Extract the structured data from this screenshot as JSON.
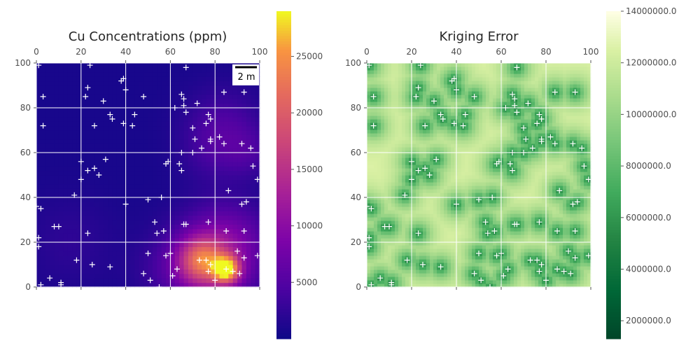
{
  "chart_data": [
    {
      "type": "heatmap",
      "title": "Cu Concentrations (ppm)",
      "xlim": [
        0,
        100
      ],
      "ylim": [
        0,
        100
      ],
      "xticks": [
        "0",
        "20",
        "40",
        "60",
        "80",
        "100"
      ],
      "yticks": [
        "0",
        "20",
        "40",
        "60",
        "80",
        "100"
      ],
      "grid": true,
      "colormap": "plasma",
      "colorbar": {
        "range": [
          0,
          29000
        ],
        "ticks": [
          5000,
          10000,
          15000,
          20000,
          25000
        ],
        "tick_labels": [
          "5000",
          "10000",
          "15000",
          "20000",
          "25000"
        ]
      },
      "scale_bar": {
        "label": "2 m"
      },
      "hotspots": [
        {
          "x": 85,
          "y": 8,
          "value": 22000,
          "spread": 4
        },
        {
          "x": 74,
          "y": 12,
          "value": 14000,
          "spread": 7
        },
        {
          "x": 78,
          "y": 10,
          "value": 9000,
          "spread": 14
        },
        {
          "x": 88,
          "y": 22,
          "value": 4000,
          "spread": 12
        },
        {
          "x": 84,
          "y": 72,
          "value": 3500,
          "spread": 12
        },
        {
          "x": 95,
          "y": 60,
          "value": 2500,
          "spread": 8
        },
        {
          "x": 78,
          "y": 60,
          "value": 1800,
          "spread": 10
        },
        {
          "x": 15,
          "y": 20,
          "value": 1500,
          "spread": 14
        },
        {
          "x": 55,
          "y": 8,
          "value": 1200,
          "spread": 10
        }
      ],
      "background_value": 800
    },
    {
      "type": "heatmap",
      "title": "Kriging Error",
      "xlim": [
        0,
        100
      ],
      "ylim": [
        0,
        100
      ],
      "xticks": [
        "0",
        "20",
        "40",
        "60",
        "80",
        "100"
      ],
      "yticks": [
        "0",
        "20",
        "40",
        "60",
        "80",
        "100"
      ],
      "grid": true,
      "colormap": "YlGn_r",
      "colorbar": {
        "range": [
          1300000,
          14000000
        ],
        "ticks": [
          2000000,
          4000000,
          6000000,
          8000000,
          10000000,
          12000000,
          14000000
        ],
        "tick_labels": [
          "2000000.0",
          "4000000.0",
          "6000000.0",
          "8000000.0",
          "10000000.0",
          "12000000.0",
          "14000000.0"
        ]
      }
    }
  ],
  "samples": [
    [
      1,
      99
    ],
    [
      24,
      99
    ],
    [
      67,
      98
    ],
    [
      39,
      93
    ],
    [
      38,
      92
    ],
    [
      40,
      88
    ],
    [
      23,
      89
    ],
    [
      3,
      85
    ],
    [
      22,
      85
    ],
    [
      30,
      83
    ],
    [
      48,
      85
    ],
    [
      65,
      86
    ],
    [
      66,
      84
    ],
    [
      72,
      82
    ],
    [
      62,
      80
    ],
    [
      66,
      81
    ],
    [
      67,
      78
    ],
    [
      84,
      87
    ],
    [
      93,
      87
    ],
    [
      33,
      77
    ],
    [
      34,
      75
    ],
    [
      44,
      77
    ],
    [
      39,
      73
    ],
    [
      3,
      72
    ],
    [
      26,
      72
    ],
    [
      43,
      72
    ],
    [
      77,
      77
    ],
    [
      78,
      75
    ],
    [
      76,
      73
    ],
    [
      70,
      71
    ],
    [
      82,
      67
    ],
    [
      78,
      66
    ],
    [
      78,
      65
    ],
    [
      71,
      66
    ],
    [
      84,
      64
    ],
    [
      92,
      64
    ],
    [
      96,
      62
    ],
    [
      70,
      60
    ],
    [
      74,
      62
    ],
    [
      65,
      60
    ],
    [
      59,
      56
    ],
    [
      58,
      55
    ],
    [
      64,
      55
    ],
    [
      65,
      52
    ],
    [
      31,
      57
    ],
    [
      20,
      56
    ],
    [
      23,
      52
    ],
    [
      26,
      53
    ],
    [
      28,
      50
    ],
    [
      20,
      48
    ],
    [
      97,
      54
    ],
    [
      99,
      48
    ],
    [
      86,
      43
    ],
    [
      17,
      41
    ],
    [
      0,
      36
    ],
    [
      2,
      35
    ],
    [
      40,
      37
    ],
    [
      50,
      39
    ],
    [
      56,
      40
    ],
    [
      94,
      38
    ],
    [
      92,
      37
    ],
    [
      53,
      29
    ],
    [
      66,
      28
    ],
    [
      67,
      28
    ],
    [
      77,
      29
    ],
    [
      8,
      27
    ],
    [
      10,
      27
    ],
    [
      23,
      24
    ],
    [
      54,
      24
    ],
    [
      57,
      25
    ],
    [
      85,
      25
    ],
    [
      93,
      25
    ],
    [
      1,
      22
    ],
    [
      1,
      18
    ],
    [
      60,
      15
    ],
    [
      58,
      14
    ],
    [
      50,
      15
    ],
    [
      73,
      12
    ],
    [
      76,
      12
    ],
    [
      90,
      16
    ],
    [
      93,
      13
    ],
    [
      99,
      14
    ],
    [
      18,
      12
    ],
    [
      25,
      10
    ],
    [
      33,
      9
    ],
    [
      78,
      10
    ],
    [
      77,
      7
    ],
    [
      63,
      8
    ],
    [
      85,
      8
    ],
    [
      88,
      7
    ],
    [
      91,
      6
    ],
    [
      6,
      4
    ],
    [
      48,
      6
    ],
    [
      51,
      3
    ],
    [
      61,
      5
    ],
    [
      80,
      3
    ],
    [
      11,
      2
    ],
    [
      11,
      1
    ],
    [
      2,
      1
    ],
    [
      55,
      0
    ]
  ]
}
